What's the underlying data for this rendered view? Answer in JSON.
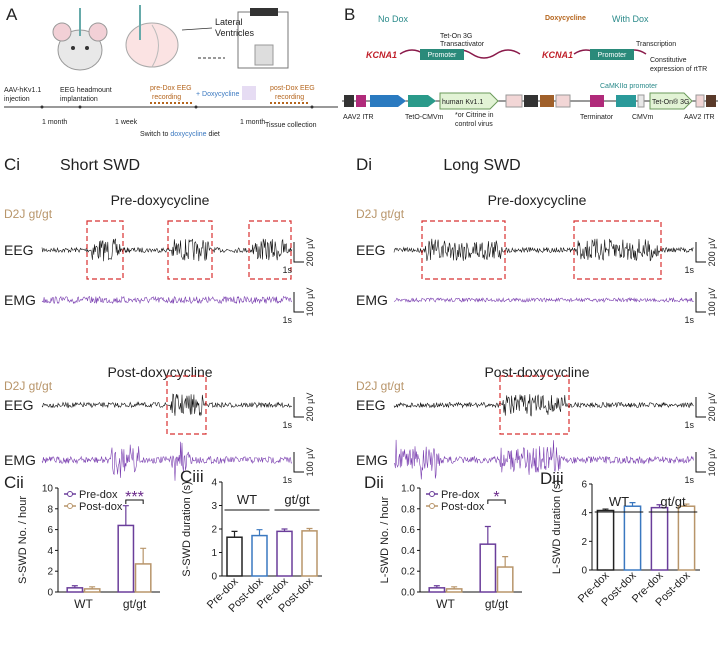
{
  "panel_a": {
    "label": "A",
    "ventricles": [
      "Lateral",
      "Ventricles"
    ],
    "injection": [
      "AAV-hKv1.1",
      "injection"
    ],
    "implantation": [
      "EEG headmount",
      "implantation"
    ],
    "pre_recording": [
      "pre-Dox EEG",
      "recording"
    ],
    "plus_dox": "+ Doxycycline",
    "post_recording": [
      "post-Dox EEG",
      "recording"
    ],
    "month1": "1 month",
    "week1": "1 week",
    "month2": "1 month",
    "switch": [
      "Switch to ",
      "doxycycline",
      " diet"
    ],
    "tissue": "Tissue collection"
  },
  "panel_b": {
    "label": "B",
    "no_dox": "No Dox",
    "tet_on": [
      "Tet-On 3G",
      "Transactivator"
    ],
    "doxycycline": "Doxycycline",
    "with_dox": "With Dox",
    "transcription": "Transcription",
    "gene": "KCNA1",
    "promoter": "Promoter",
    "constitutive": [
      "Constitutive",
      "expression of rtTR"
    ],
    "construct": {
      "itr": "AAV2 ITR",
      "teto": "TetO-CMVm",
      "human_kv": "human Kv1.1",
      "citrine": [
        "*or Citrine in",
        "control virus"
      ],
      "terminator": "Terminator",
      "camkii": "CaMKIIα promoter",
      "cmvm": "CMVm",
      "tet_on": "Tet-On® 3G"
    }
  },
  "panel_c": {
    "label": "Ci",
    "title": "Short SWD",
    "pre": "Pre-doxycycline",
    "post": "Post-doxycycline",
    "strain": "D2J gt/gt",
    "eeg": "EEG",
    "emg": "EMG",
    "eeg_scale": "200 μV",
    "emg_scale": "100 μV",
    "time_scale": "1s"
  },
  "panel_d": {
    "label": "Di",
    "title": "Long SWD",
    "pre": "Pre-doxycycline",
    "post": "Post-doxycycline",
    "strain": "D2J gt/gt",
    "eeg": "EEG",
    "emg": "EMG",
    "eeg_scale": "200 μV",
    "emg_scale": "100 μV",
    "time_scale": "1s"
  },
  "chart_data": [
    {
      "type": "bar",
      "label": "Cii",
      "ylabel": "S-SWD No. / hour",
      "categories": [
        "WT",
        "gt/gt"
      ],
      "series": [
        {
          "name": "Pre-dox",
          "color": "#6a3d9a",
          "values": [
            0.4,
            6.4
          ],
          "errors": [
            0.2,
            1.9
          ]
        },
        {
          "name": "Post-dox",
          "color": "#b8956a",
          "values": [
            0.3,
            2.7
          ],
          "errors": [
            0.2,
            1.5
          ]
        }
      ],
      "significance": "***",
      "ylim": [
        0,
        10
      ],
      "yticks": [
        0,
        2,
        4,
        6,
        8,
        10
      ]
    },
    {
      "type": "bar",
      "label": "Ciii",
      "ylabel": "S-SWD duration (s)",
      "categories": [
        "Pre-dox",
        "Post-dox",
        "Pre-dox",
        "Post-dox"
      ],
      "values": [
        1.65,
        1.72,
        1.9,
        1.92
      ],
      "errors": [
        0.25,
        0.25,
        0.1,
        0.1
      ],
      "colors": [
        "#222222",
        "#3a78c0",
        "#6a3d9a",
        "#b8956a"
      ],
      "groups": [
        "WT",
        "gt/gt"
      ],
      "ylim": [
        0,
        4
      ],
      "yticks": [
        0,
        1,
        2,
        3,
        4
      ]
    },
    {
      "type": "bar",
      "label": "Dii",
      "ylabel": "L-SWD No. / hour",
      "categories": [
        "WT",
        "gt/gt"
      ],
      "series": [
        {
          "name": "Pre-dox",
          "color": "#6a3d9a",
          "values": [
            0.04,
            0.46
          ],
          "errors": [
            0.02,
            0.17
          ]
        },
        {
          "name": "Post-dox",
          "color": "#b8956a",
          "values": [
            0.03,
            0.24
          ],
          "errors": [
            0.02,
            0.1
          ]
        }
      ],
      "significance": "*",
      "ylim": [
        0,
        1
      ],
      "yticks": [
        {
          "value": 0,
          "label": "0.0"
        },
        0.2,
        0.4,
        0.6,
        0.8,
        {
          "value": 1,
          "label": "1.0"
        }
      ]
    },
    {
      "type": "bar",
      "label": "Diii",
      "ylabel": "L-SWD duration (s)",
      "categories": [
        "Pre-dox",
        "Post-dox",
        "Pre-dox",
        "Post-dox"
      ],
      "values": [
        4.15,
        4.45,
        4.35,
        4.45
      ],
      "errors": [
        0.1,
        0.25,
        0.2,
        0.15
      ],
      "colors": [
        "#222222",
        "#3a78c0",
        "#6a3d9a",
        "#b8956a"
      ],
      "groups": [
        "WT",
        "gt/gt"
      ],
      "ylim": [
        0,
        6
      ],
      "yticks": [
        0,
        2,
        4,
        6
      ]
    }
  ]
}
